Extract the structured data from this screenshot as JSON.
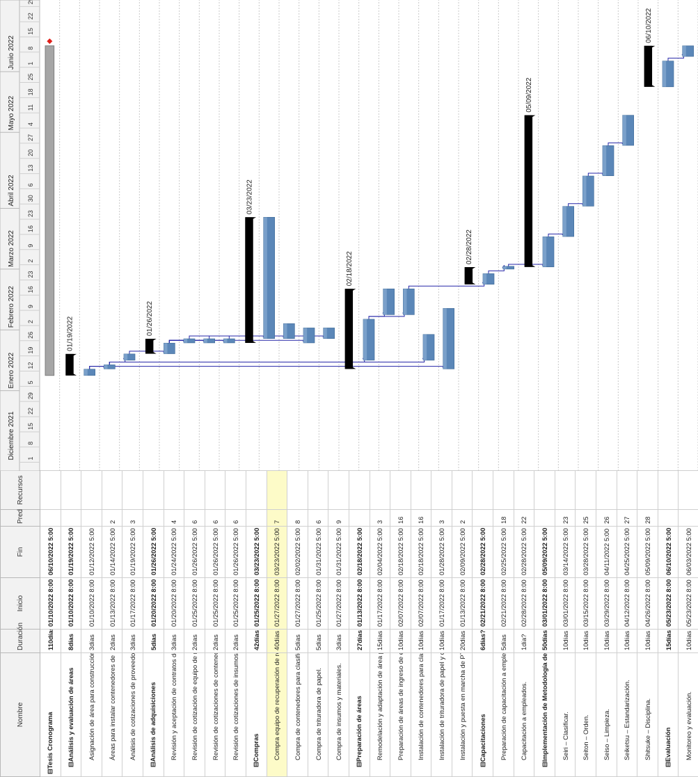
{
  "table": {
    "headers": {
      "name": "Nombre",
      "duration": "Duración",
      "start": "Inicio",
      "finish": "Fin",
      "pred": "Pred",
      "resources": "Recursos"
    },
    "rows": [
      {
        "name": "⊟Tesis Cronograma",
        "duration": "110días?",
        "start": "01/10/2022 8:00 AM",
        "finish": "06/10/2022 5:00 PM",
        "pred": "",
        "level": 0,
        "summary": true
      },
      {
        "name": "⊟Análisis y evaluación de áreas",
        "duration": "8días",
        "start": "01/10/2022 8:00 AM",
        "finish": "01/19/2022 5:00 PM",
        "pred": "",
        "level": 1,
        "summary": true
      },
      {
        "name": "Asignación de área para construcción de PTAR.",
        "duration": "3días",
        "start": "01/10/2022 8:00 AM",
        "finish": "01/12/2022 5:00 PM",
        "pred": "",
        "level": 2
      },
      {
        "name": "Áreas para instalar contenedores de reciclaje.",
        "duration": "2días",
        "start": "01/13/2022 8:00 AM",
        "finish": "01/14/2022 5:00 PM",
        "pred": "2",
        "level": 2
      },
      {
        "name": "Análisis de cotizaciones de proveedores.",
        "duration": "3días",
        "start": "01/17/2022 8:00 AM",
        "finish": "01/19/2022 5:00 PM",
        "pred": "3",
        "level": 2
      },
      {
        "name": "⊟Análisis de adquisiciones",
        "duration": "5días",
        "start": "01/20/2022 8:00 AM",
        "finish": "01/26/2022 5:00 PM",
        "pred": "",
        "level": 1,
        "summary": true
      },
      {
        "name": "Revisión y aceptación de contratos de reciclaje",
        "duration": "3días",
        "start": "01/20/2022 8:00 AM",
        "finish": "01/24/2022 5:00 PM",
        "pred": "4",
        "level": 2
      },
      {
        "name": "Revisión de cotización de equipo de recuperación de refrigerante",
        "duration": "2días",
        "start": "01/25/2022 8:00 AM",
        "finish": "01/26/2022 5:00 PM",
        "pred": "6",
        "level": 2
      },
      {
        "name": "Revisión de cotizaciones de contenedores para reciclaje",
        "duration": "2días",
        "start": "01/25/2022 8:00 AM",
        "finish": "01/26/2022 5:00 PM",
        "pred": "6",
        "level": 2
      },
      {
        "name": "Revisión de cotizaciones de insumos y materiales",
        "duration": "2días",
        "start": "01/25/2022 8:00 AM",
        "finish": "01/26/2022 5:00 PM",
        "pred": "6",
        "level": 2
      },
      {
        "name": "⊟Compras",
        "duration": "42días",
        "start": "01/25/2022 8:00 AM",
        "finish": "03/23/2022 5:00 PM",
        "pred": "",
        "level": 1,
        "summary": true
      },
      {
        "name": "Compra equipo de recuperación de refrigerantes.",
        "duration": "40días",
        "start": "01/27/2022 8:00 AM",
        "finish": "03/23/2022 5:00 PM",
        "pred": "7",
        "level": 2,
        "highlight": true
      },
      {
        "name": "Compra de contenedores para clasificación de desechos.",
        "duration": "5días",
        "start": "01/27/2022 8:00 AM",
        "finish": "02/02/2022 5:00 PM",
        "pred": "8",
        "level": 2
      },
      {
        "name": "Compra de trituradora de papel.",
        "duration": "5días",
        "start": "01/25/2022 8:00 AM",
        "finish": "01/31/2022 5:00 PM",
        "pred": "6",
        "level": 2
      },
      {
        "name": "Compra de insumos y materiales.",
        "duration": "3días",
        "start": "01/27/2022 8:00 AM",
        "finish": "01/31/2022 5:00 PM",
        "pred": "9",
        "level": 2
      },
      {
        "name": "⊟Preparación de áreas",
        "duration": "27días",
        "start": "01/13/2022 8:00 AM",
        "finish": "02/18/2022 5:00 PM",
        "pred": "",
        "level": 1,
        "summary": true
      },
      {
        "name": "Remodelación y adaptación de área para contenedores de reciclaje",
        "duration": "15días",
        "start": "01/17/2022 8:00 AM",
        "finish": "02/04/2022 5:00 PM",
        "pred": "3",
        "level": 2
      },
      {
        "name": "Preparación de áreas de ingreso de empresas de reciclaje.",
        "duration": "10días",
        "start": "02/07/2022 8:00 AM",
        "finish": "02/18/2022 5:00 PM",
        "pred": "16",
        "level": 2
      },
      {
        "name": "Instalación de contenedores para clasificación de desechos",
        "duration": "10días",
        "start": "02/07/2022 8:00 AM",
        "finish": "02/18/2022 5:00 PM",
        "pred": "16",
        "level": 2
      },
      {
        "name": "Instalación de trituradora de papel y ductos de conexión.",
        "duration": "10días",
        "start": "01/17/2022 8:00 AM",
        "finish": "01/28/2022 5:00 PM",
        "pred": "3",
        "level": 2
      },
      {
        "name": "Instalación y puesta en marcha de PTAR",
        "duration": "20días",
        "start": "01/13/2022 8:00 AM",
        "finish": "02/09/2022 5:00 PM",
        "pred": "2",
        "level": 2
      },
      {
        "name": "⊟Capacitaciones",
        "duration": "6días?",
        "start": "02/21/2022 8:00 AM",
        "finish": "02/28/2022 5:00 PM",
        "pred": "",
        "level": 1,
        "summary": true
      },
      {
        "name": "Preparación de capacitación a empleados.",
        "duration": "5días",
        "start": "02/21/2022 8:00 AM",
        "finish": "02/25/2022 5:00 PM",
        "pred": "18",
        "level": 2
      },
      {
        "name": "Capacitación a empleados.",
        "duration": "1día?",
        "start": "02/28/2022 8:00 AM",
        "finish": "02/28/2022 5:00 PM",
        "pred": "22",
        "level": 2
      },
      {
        "name": "⊟Implementación de Metodología de las 5'S",
        "duration": "50días",
        "start": "03/01/2022 8:00 AM",
        "finish": "05/09/2022 5:00 PM",
        "pred": "",
        "level": 1,
        "summary": true
      },
      {
        "name": "Seiri – Clasificar.",
        "duration": "10días",
        "start": "03/01/2022 8:00 AM",
        "finish": "03/14/2022 5:00 PM",
        "pred": "23",
        "level": 2
      },
      {
        "name": "Seiton – Orden.",
        "duration": "10días",
        "start": "03/15/2022 8:00 AM",
        "finish": "03/28/2022 5:00 PM",
        "pred": "25",
        "level": 2
      },
      {
        "name": "Seiso – Limpieza.",
        "duration": "10días",
        "start": "03/29/2022 8:00 AM",
        "finish": "04/11/2022 5:00 PM",
        "pred": "26",
        "level": 2
      },
      {
        "name": "Seiketsu – Estandarización.",
        "duration": "10días",
        "start": "04/12/2022 8:00 AM",
        "finish": "04/25/2022 5:00 PM",
        "pred": "27",
        "level": 2
      },
      {
        "name": "Shitsuke – Disciplina.",
        "duration": "10días",
        "start": "04/26/2022 8:00 AM",
        "finish": "05/09/2022 5:00 PM",
        "pred": "28",
        "level": 2
      },
      {
        "name": "⊟Evaluación",
        "duration": "15días",
        "start": "05/23/2022 8:00 AM",
        "finish": "06/10/2022 5:00 PM",
        "pred": "",
        "level": 1,
        "summary": true
      },
      {
        "name": "Monitoreo y evaluación.",
        "duration": "10días",
        "start": "05/23/2022 8:00 AM",
        "finish": "06/03/2022 5:00 PM",
        "pred": "",
        "level": 2
      },
      {
        "name": "Auditorías internas.",
        "duration": "5días",
        "start": "06/06/2022 8:00 AM",
        "finish": "06/10/2022 5:00 PM",
        "pred": "31",
        "level": 2
      }
    ]
  },
  "chart_data": {
    "type": "gantt",
    "timescale": {
      "months": [
        {
          "label": "Diciembre 2021",
          "start": "2021-12-01"
        },
        {
          "label": "Enero 2022",
          "start": "2022-01-03"
        },
        {
          "label": "Febrero 2022",
          "start": "2022-01-31"
        },
        {
          "label": "Marzo 2022",
          "start": "2022-02-28"
        },
        {
          "label": "Abril 2022",
          "start": "2022-03-28"
        },
        {
          "label": "Mayo 2022",
          "start": "2022-05-02"
        },
        {
          "label": "Junio 2022",
          "start": "2022-05-30"
        }
      ],
      "weeks": [
        {
          "label": "1",
          "date": "2021-12-01"
        },
        {
          "label": "8",
          "date": "2021-12-08"
        },
        {
          "label": "15",
          "date": "2021-12-15"
        },
        {
          "label": "22",
          "date": "2021-12-22"
        },
        {
          "label": "29",
          "date": "2021-12-29"
        },
        {
          "label": "5",
          "date": "2022-01-05"
        },
        {
          "label": "12",
          "date": "2022-01-12"
        },
        {
          "label": "19",
          "date": "2022-01-19"
        },
        {
          "label": "26",
          "date": "2022-01-26"
        },
        {
          "label": "2",
          "date": "2022-02-02"
        },
        {
          "label": "9",
          "date": "2022-02-09"
        },
        {
          "label": "16",
          "date": "2022-02-16"
        },
        {
          "label": "23",
          "date": "2022-02-23"
        },
        {
          "label": "2",
          "date": "2022-03-02"
        },
        {
          "label": "9",
          "date": "2022-03-09"
        },
        {
          "label": "16",
          "date": "2022-03-16"
        },
        {
          "label": "23",
          "date": "2022-03-23"
        },
        {
          "label": "30",
          "date": "2022-03-30"
        },
        {
          "label": "6",
          "date": "2022-04-06"
        },
        {
          "label": "13",
          "date": "2022-04-13"
        },
        {
          "label": "20",
          "date": "2022-04-20"
        },
        {
          "label": "27",
          "date": "2022-04-27"
        },
        {
          "label": "4",
          "date": "2022-05-04"
        },
        {
          "label": "11",
          "date": "2022-05-11"
        },
        {
          "label": "18",
          "date": "2022-05-18"
        },
        {
          "label": "25",
          "date": "2022-05-25"
        },
        {
          "label": "1",
          "date": "2022-06-01"
        },
        {
          "label": "8",
          "date": "2022-06-08"
        },
        {
          "label": "15",
          "date": "2022-06-15"
        },
        {
          "label": "22",
          "date": "2022-06-22"
        },
        {
          "label": "29",
          "date": "2022-06-29"
        }
      ],
      "range": [
        "2021-11-27",
        "2022-07-02"
      ]
    },
    "tasks": [
      {
        "row": 0,
        "start": "2022-01-10",
        "finish": "2022-06-10",
        "kind": "project"
      },
      {
        "row": 1,
        "start": "2022-01-10",
        "finish": "2022-01-19",
        "kind": "summary",
        "label": "01/19/2022"
      },
      {
        "row": 2,
        "start": "2022-01-10",
        "finish": "2022-01-12",
        "kind": "task"
      },
      {
        "row": 3,
        "start": "2022-01-13",
        "finish": "2022-01-14",
        "kind": "task"
      },
      {
        "row": 4,
        "start": "2022-01-17",
        "finish": "2022-01-19",
        "kind": "task"
      },
      {
        "row": 5,
        "start": "2022-01-20",
        "finish": "2022-01-26",
        "kind": "summary",
        "label": "01/26/2022"
      },
      {
        "row": 6,
        "start": "2022-01-20",
        "finish": "2022-01-24",
        "kind": "task"
      },
      {
        "row": 7,
        "start": "2022-01-25",
        "finish": "2022-01-26",
        "kind": "task"
      },
      {
        "row": 8,
        "start": "2022-01-25",
        "finish": "2022-01-26",
        "kind": "task"
      },
      {
        "row": 9,
        "start": "2022-01-25",
        "finish": "2022-01-26",
        "kind": "task"
      },
      {
        "row": 10,
        "start": "2022-01-25",
        "finish": "2022-03-23",
        "kind": "summary",
        "label": "03/23/2022"
      },
      {
        "row": 11,
        "start": "2022-01-27",
        "finish": "2022-03-23",
        "kind": "task"
      },
      {
        "row": 12,
        "start": "2022-01-27",
        "finish": "2022-02-02",
        "kind": "task"
      },
      {
        "row": 13,
        "start": "2022-01-25",
        "finish": "2022-01-31",
        "kind": "task"
      },
      {
        "row": 14,
        "start": "2022-01-27",
        "finish": "2022-01-31",
        "kind": "task"
      },
      {
        "row": 15,
        "start": "2022-01-13",
        "finish": "2022-02-18",
        "kind": "summary",
        "label": "02/18/2022"
      },
      {
        "row": 16,
        "start": "2022-01-17",
        "finish": "2022-02-04",
        "kind": "task"
      },
      {
        "row": 17,
        "start": "2022-02-07",
        "finish": "2022-02-18",
        "kind": "task"
      },
      {
        "row": 18,
        "start": "2022-02-07",
        "finish": "2022-02-18",
        "kind": "task"
      },
      {
        "row": 19,
        "start": "2022-01-17",
        "finish": "2022-01-28",
        "kind": "task"
      },
      {
        "row": 20,
        "start": "2022-01-13",
        "finish": "2022-02-09",
        "kind": "task"
      },
      {
        "row": 21,
        "start": "2022-02-21",
        "finish": "2022-02-28",
        "kind": "summary",
        "label": "02/28/2022"
      },
      {
        "row": 22,
        "start": "2022-02-21",
        "finish": "2022-02-25",
        "kind": "task"
      },
      {
        "row": 23,
        "start": "2022-02-28",
        "finish": "2022-02-28",
        "kind": "task"
      },
      {
        "row": 24,
        "start": "2022-03-01",
        "finish": "2022-05-09",
        "kind": "summary",
        "label": "05/09/2022"
      },
      {
        "row": 25,
        "start": "2022-03-01",
        "finish": "2022-03-14",
        "kind": "task"
      },
      {
        "row": 26,
        "start": "2022-03-15",
        "finish": "2022-03-28",
        "kind": "task"
      },
      {
        "row": 27,
        "start": "2022-03-29",
        "finish": "2022-04-11",
        "kind": "task"
      },
      {
        "row": 28,
        "start": "2022-04-12",
        "finish": "2022-04-25",
        "kind": "task"
      },
      {
        "row": 29,
        "start": "2022-04-26",
        "finish": "2022-05-09",
        "kind": "task"
      },
      {
        "row": 30,
        "start": "2022-05-23",
        "finish": "2022-06-10",
        "kind": "summary",
        "label": "06/10/2022"
      },
      {
        "row": 31,
        "start": "2022-05-23",
        "finish": "2022-06-03",
        "kind": "task"
      },
      {
        "row": 32,
        "start": "2022-06-06",
        "finish": "2022-06-10",
        "kind": "task"
      }
    ],
    "links": [
      [
        2,
        3
      ],
      [
        3,
        4
      ],
      [
        4,
        6
      ],
      [
        6,
        7
      ],
      [
        6,
        8
      ],
      [
        6,
        9
      ],
      [
        7,
        11
      ],
      [
        8,
        12
      ],
      [
        6,
        13
      ],
      [
        9,
        14
      ],
      [
        3,
        16
      ],
      [
        16,
        17
      ],
      [
        16,
        18
      ],
      [
        3,
        19
      ],
      [
        2,
        20
      ],
      [
        18,
        22
      ],
      [
        22,
        23
      ],
      [
        23,
        25
      ],
      [
        25,
        26
      ],
      [
        26,
        27
      ],
      [
        27,
        28
      ],
      [
        28,
        29
      ],
      [
        31,
        32
      ]
    ],
    "milestone_date": "2022-06-13",
    "colors": {
      "task": "#5b87b8",
      "summary": "#000000",
      "project": "#a6a6a6",
      "link": "#2525a8",
      "milestone": "#e0201a",
      "highlight_row": "#fdfbc8",
      "grid": "#c8c8c8"
    }
  }
}
